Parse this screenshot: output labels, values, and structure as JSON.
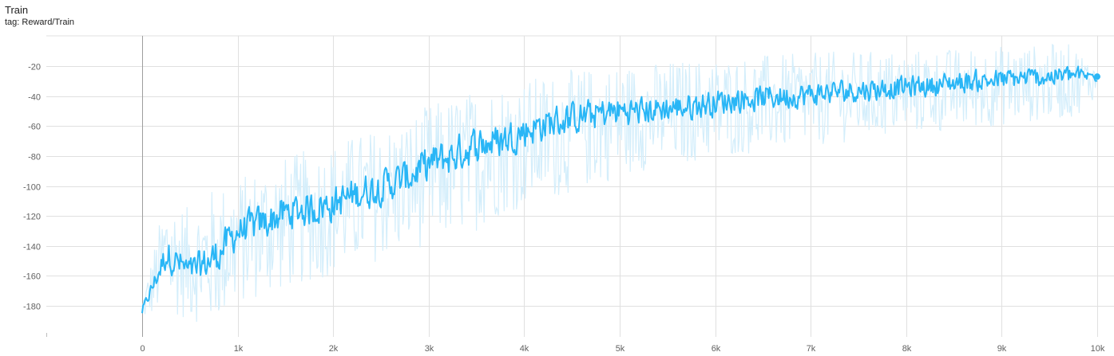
{
  "card": {
    "title": "Train",
    "tag": "tag: Reward/Train"
  },
  "chart_data": {
    "type": "line",
    "title": "Train",
    "subtitle": "tag: Reward/Train",
    "xlabel": "",
    "ylabel": "",
    "xlim": [
      -1000,
      10200
    ],
    "ylim": [
      -197,
      2
    ],
    "x_ticks": [
      0,
      1000,
      2000,
      3000,
      4000,
      5000,
      6000,
      7000,
      8000,
      9000,
      10000
    ],
    "x_tick_labels": [
      "0",
      "1k",
      "2k",
      "3k",
      "4k",
      "5k",
      "6k",
      "7k",
      "8k",
      "9k",
      "10k"
    ],
    "y_ticks": [
      -180,
      -160,
      -140,
      -120,
      -100,
      -80,
      -60,
      -40,
      -20
    ],
    "y_tick_labels": [
      "-180",
      "-160",
      "-140",
      "-120",
      "-100",
      "-80",
      "-60",
      "-40",
      "-20"
    ],
    "grid": true,
    "series": [
      {
        "color": "#29b6f6",
        "raw_color": "#d4eefb",
        "x": [
          0,
          250,
          500,
          750,
          1000,
          1250,
          1500,
          1750,
          2000,
          2250,
          2500,
          2750,
          3000,
          3250,
          3500,
          3750,
          4000,
          4250,
          4500,
          4750,
          5000,
          5250,
          5500,
          5750,
          6000,
          6250,
          6500,
          6750,
          7000,
          7250,
          7500,
          7750,
          8000,
          8250,
          8500,
          8750,
          9000,
          9250,
          9500,
          9750,
          10000
        ],
        "smoothed": [
          -183,
          -145,
          -158,
          -148,
          -130,
          -125,
          -118,
          -115,
          -112,
          -105,
          -100,
          -95,
          -85,
          -80,
          -72,
          -70,
          -63,
          -58,
          -55,
          -52,
          -50,
          -50,
          -48,
          -47,
          -44,
          -42,
          -41,
          -40,
          -39,
          -37,
          -36,
          -35,
          -34,
          -33,
          -31,
          -30,
          -29,
          -28,
          -27,
          -26,
          -27
        ],
        "raw_envelope_high": [
          -175,
          -105,
          -115,
          -100,
          -95,
          -85,
          -80,
          -75,
          -70,
          -65,
          -60,
          -55,
          -45,
          -40,
          -35,
          -30,
          -28,
          -25,
          -22,
          -20,
          -18,
          -18,
          -16,
          -15,
          -14,
          -13,
          -12,
          -12,
          -11,
          -10,
          -10,
          -9,
          -9,
          -8,
          -8,
          -7,
          -6,
          -6,
          -5,
          -5,
          -20
        ],
        "raw_envelope_low": [
          -190,
          -185,
          -190,
          -195,
          -180,
          -175,
          -170,
          -165,
          -160,
          -155,
          -150,
          -145,
          -140,
          -135,
          -130,
          -120,
          -115,
          -110,
          -105,
          -100,
          -95,
          -90,
          -88,
          -85,
          -82,
          -80,
          -78,
          -76,
          -74,
          -72,
          -70,
          -68,
          -66,
          -65,
          -64,
          -62,
          -60,
          -58,
          -56,
          -55,
          -40
        ]
      }
    ]
  }
}
